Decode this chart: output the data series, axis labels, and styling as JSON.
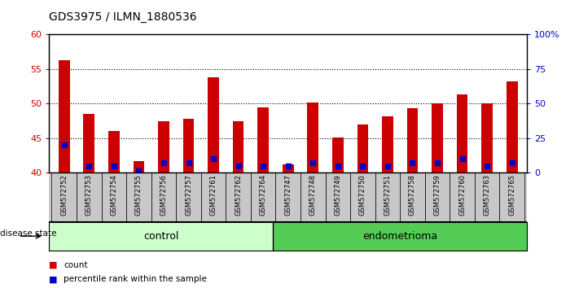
{
  "title": "GDS3975 / ILMN_1880536",
  "samples": [
    "GSM572752",
    "GSM572753",
    "GSM572754",
    "GSM572755",
    "GSM572756",
    "GSM572757",
    "GSM572761",
    "GSM572762",
    "GSM572764",
    "GSM572747",
    "GSM572748",
    "GSM572749",
    "GSM572750",
    "GSM572751",
    "GSM572758",
    "GSM572759",
    "GSM572760",
    "GSM572763",
    "GSM572765"
  ],
  "counts": [
    56.3,
    48.5,
    46.0,
    41.7,
    47.5,
    47.8,
    53.8,
    47.5,
    49.5,
    41.2,
    50.2,
    45.1,
    47.0,
    48.2,
    49.3,
    50.0,
    51.3,
    50.0,
    53.2
  ],
  "percentiles": [
    44,
    41,
    41,
    40.3,
    41.5,
    41.5,
    42,
    41,
    41,
    41,
    41.5,
    41,
    41,
    41,
    41.5,
    41.5,
    42,
    41,
    41.5
  ],
  "ymin": 40,
  "ymax": 60,
  "yticks": [
    40,
    45,
    50,
    55,
    60
  ],
  "right_yticks": [
    0,
    25,
    50,
    75,
    100
  ],
  "right_yticklabels": [
    "0",
    "25",
    "50",
    "75",
    "100%"
  ],
  "control_count": 9,
  "endometrioma_count": 10,
  "bar_color": "#cc0000",
  "percentile_color": "#0000cc",
  "control_bg": "#ccffcc",
  "endometrioma_bg": "#55cc55",
  "xtick_bg": "#c8c8c8",
  "bar_width": 0.45,
  "tick_color": "#cc0000",
  "right_tick_color": "#0000cc",
  "legend_count_color": "#cc0000",
  "legend_pct_color": "#0000cc"
}
